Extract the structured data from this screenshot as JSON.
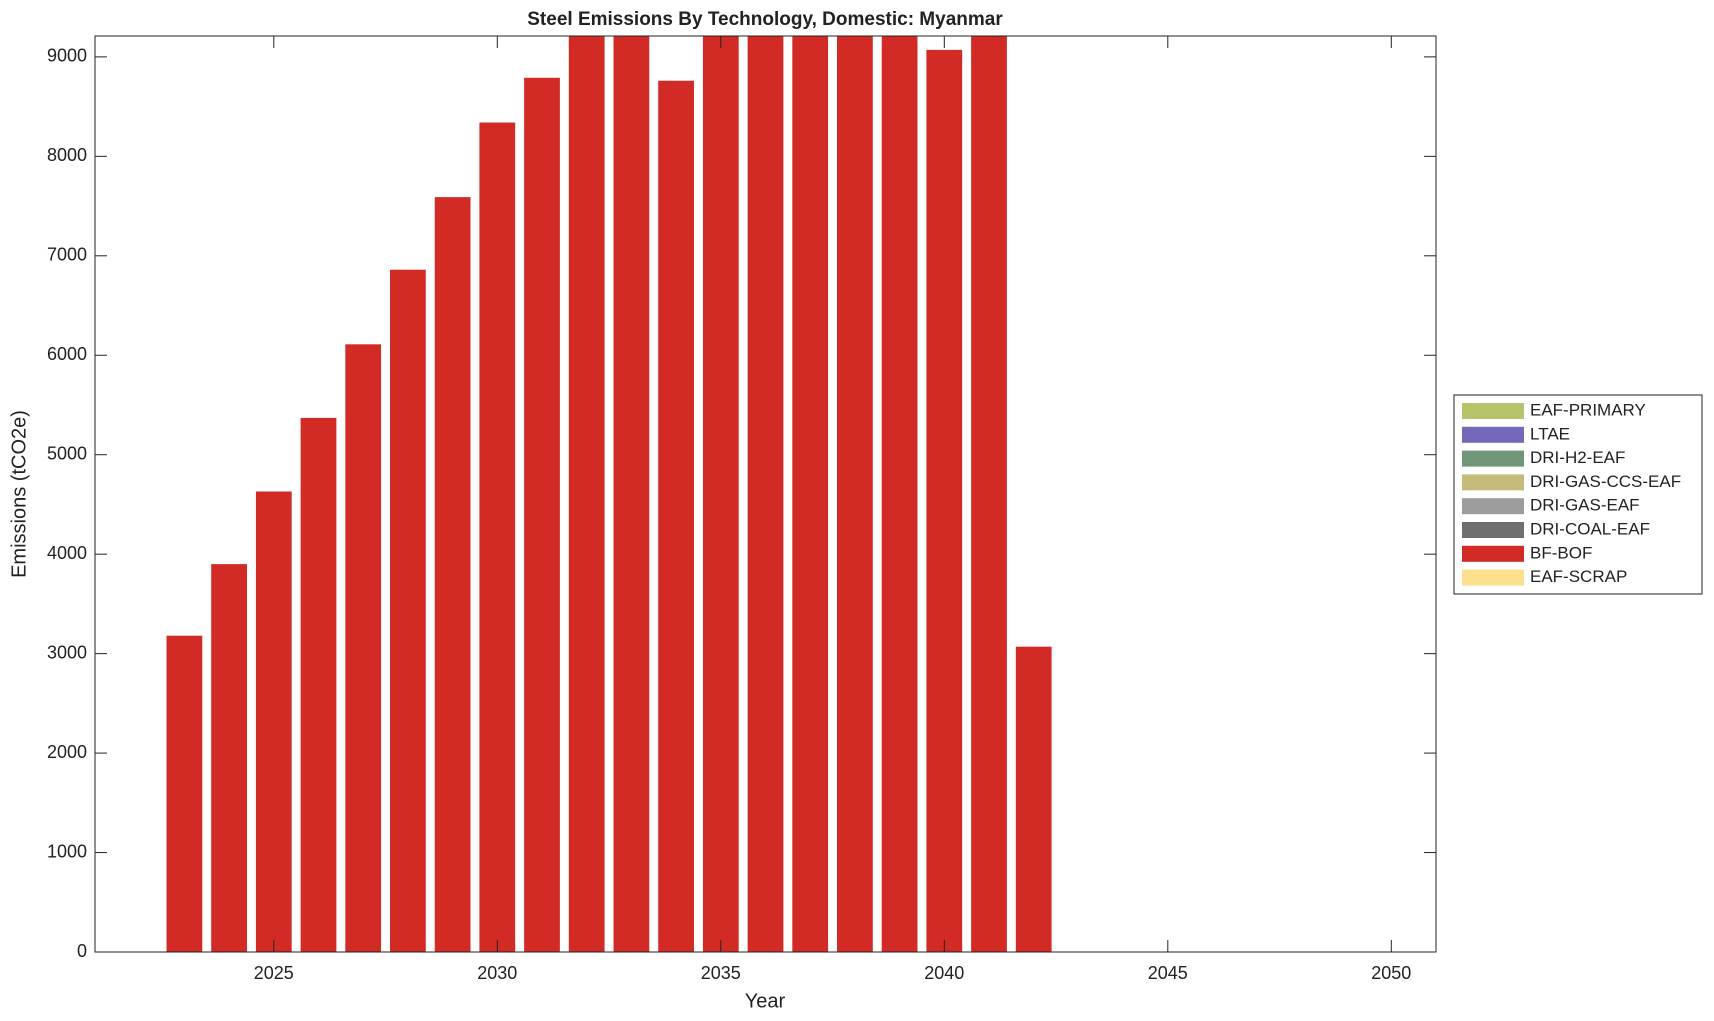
{
  "chart_data": {
    "type": "stacked_bar",
    "title": "Steel Emissions By Technology, Domestic: Myanmar",
    "x_label": "Year",
    "y_label": "Emissions (tCO2e)",
    "x": [
      2023,
      2024,
      2025,
      2026,
      2027,
      2028,
      2029,
      2030,
      2031,
      2032,
      2033,
      2034,
      2035,
      2036,
      2037,
      2038,
      2039,
      2040,
      2041,
      2042
    ],
    "series": [
      {
        "name": "EAF-PRIMARY",
        "color": "#b9c46a",
        "values": [
          0,
          0,
          0,
          0,
          0,
          0,
          0,
          0,
          0,
          0,
          0,
          0,
          0,
          0,
          0,
          0,
          0,
          0,
          0,
          0
        ]
      },
      {
        "name": "LTAE",
        "color": "#7468b8",
        "values": [
          0,
          0,
          0,
          0,
          0,
          0,
          0,
          0,
          0,
          0,
          0,
          0,
          0,
          0,
          0,
          0,
          0,
          0,
          0,
          0
        ]
      },
      {
        "name": "DRI-H2-EAF",
        "color": "#6e9677",
        "values": [
          0,
          0,
          0,
          0,
          0,
          0,
          0,
          0,
          0,
          0,
          0,
          0,
          0,
          0,
          0,
          0,
          0,
          0,
          0,
          0
        ]
      },
      {
        "name": "DRI-GAS-CCS-EAF",
        "color": "#c5bb7b",
        "values": [
          0,
          0,
          0,
          0,
          0,
          0,
          0,
          0,
          0,
          0,
          0,
          0,
          0,
          0,
          0,
          0,
          0,
          0,
          0,
          0
        ]
      },
      {
        "name": "DRI-GAS-EAF",
        "color": "#9d9d9d",
        "values": [
          0,
          0,
          0,
          0,
          0,
          0,
          0,
          0,
          0,
          0,
          0,
          0,
          0,
          0,
          0,
          0,
          0,
          0,
          0,
          0
        ]
      },
      {
        "name": "DRI-COAL-EAF",
        "color": "#6e6e6e",
        "values": [
          0,
          0,
          0,
          0,
          0,
          0,
          0,
          0,
          0,
          0,
          0,
          0,
          0,
          0,
          0,
          0,
          0,
          0,
          0,
          0
        ]
      },
      {
        "name": "BF-BOF",
        "color": "#d22a25",
        "values": [
          3180,
          3900,
          4630,
          5370,
          6110,
          6860,
          7590,
          8340,
          8790,
          9210,
          9210,
          8760,
          9210,
          9210,
          9210,
          9210,
          9210,
          9070,
          9210,
          3070
        ]
      },
      {
        "name": "EAF-SCRAP",
        "color": "#fde08f",
        "values": [
          0,
          0,
          0,
          0,
          0,
          0,
          0,
          0,
          0,
          0,
          0,
          0,
          0,
          0,
          0,
          0,
          0,
          0,
          0,
          0
        ]
      }
    ],
    "xlim": [
      2021,
      2051
    ],
    "xticks": [
      2025,
      2030,
      2035,
      2040,
      2045,
      2050
    ],
    "ylim": [
      0,
      9210
    ],
    "yticks": [
      0,
      1000,
      2000,
      3000,
      4000,
      5000,
      6000,
      7000,
      8000,
      9000
    ],
    "legend": "outside-right"
  }
}
